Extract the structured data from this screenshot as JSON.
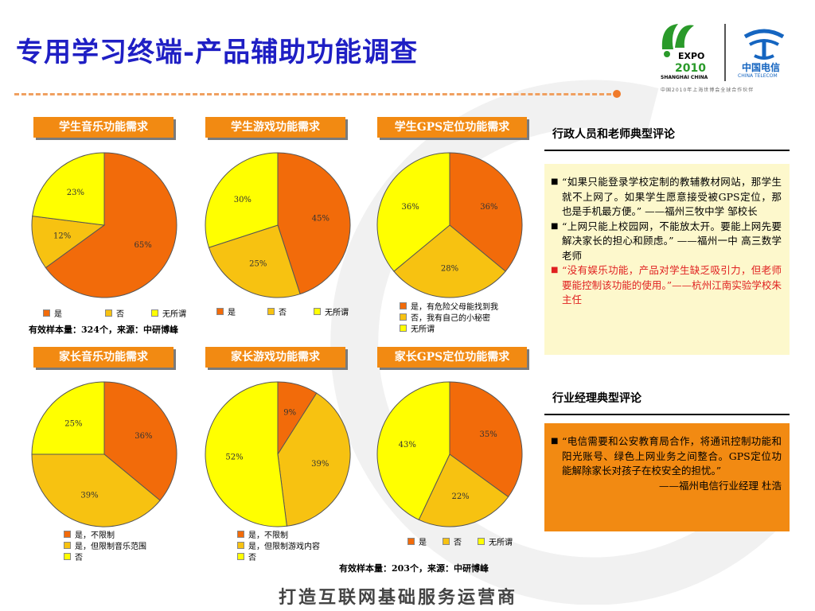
{
  "title": "专用学习终端-产品辅助功能调查",
  "logos": {
    "expo_line1": "EXPO",
    "expo_line2": "2010",
    "expo_line3": "SHANGHAI CHINA",
    "ct_cn": "中国电信",
    "ct_en": "CHINA TELECOM",
    "footnote": "中国2010年上海世博会全球合作伙伴"
  },
  "colors": {
    "orange": "#f26b0a",
    "light_orange": "#f7c211",
    "yellow": "#ffff00",
    "header": "#f28a12"
  },
  "chart_data": [
    {
      "type": "pie",
      "title": "学生音乐功能需求",
      "slices": [
        {
          "label": "是",
          "value": 65
        },
        {
          "label": "否",
          "value": 12
        },
        {
          "label": "无所谓",
          "value": 23
        }
      ]
    },
    {
      "type": "pie",
      "title": "学生游戏功能需求",
      "slices": [
        {
          "label": "是",
          "value": 45
        },
        {
          "label": "否",
          "value": 25
        },
        {
          "label": "无所谓",
          "value": 30
        }
      ]
    },
    {
      "type": "pie",
      "title": "学生GPS定位功能需求",
      "slices": [
        {
          "label": "是，有危险父母能找到我",
          "value": 36
        },
        {
          "label": "否，我有自己的小秘密",
          "value": 28
        },
        {
          "label": "无所谓",
          "value": 36
        }
      ]
    },
    {
      "type": "pie",
      "title": "家长音乐功能需求",
      "slices": [
        {
          "label": "是，不限制",
          "value": 36
        },
        {
          "label": "是，但限制音乐范围",
          "value": 39
        },
        {
          "label": "否",
          "value": 25
        }
      ]
    },
    {
      "type": "pie",
      "title": "家长游戏功能需求",
      "slices": [
        {
          "label": "是，不限制",
          "value": 9
        },
        {
          "label": "是，但限制游戏内容",
          "value": 39
        },
        {
          "label": "否",
          "value": 52
        }
      ]
    },
    {
      "type": "pie",
      "title": "家长GPS定位功能需求",
      "slices": [
        {
          "label": "是",
          "value": 35
        },
        {
          "label": "否",
          "value": 22
        },
        {
          "label": "无所谓",
          "value": 43
        }
      ]
    }
  ],
  "notes": {
    "student_sample": "有效样本量：324个，来源：中研博峰",
    "parent_sample": "有效样本量：203个，来源：中研博峰"
  },
  "comments": {
    "admin_title": "行政人员和老师典型评论",
    "admin_items": [
      {
        "text": "“如果只能登录学校定制的教辅教材网站，那学生就不上网了。如果学生愿意接受被GPS定位，那也是手机最方便。” ——福州三牧中学 邹校长",
        "highlight": false
      },
      {
        "text": "“上网只能上校园网，不能放太开。要能上网先要解决家长的担心和顾虑。” ——福州一中 高三数学老师",
        "highlight": false
      },
      {
        "text": "“没有娱乐功能，产品对学生缺乏吸引力，但老师要能控制该功能的使用。”——杭州江南实验学校朱主任",
        "highlight": true
      }
    ],
    "manager_title": "行业经理典型评论",
    "manager_item": "“电信需要和公安教育局合作，将通讯控制功能和阳光账号、绿色上网业务之间整合。GPS定位功能解除家长对孩子在校安全的担忧。”",
    "manager_sig": "——福州电信行业经理 杜浩"
  },
  "footer": "打造互联网基础服务运营商"
}
